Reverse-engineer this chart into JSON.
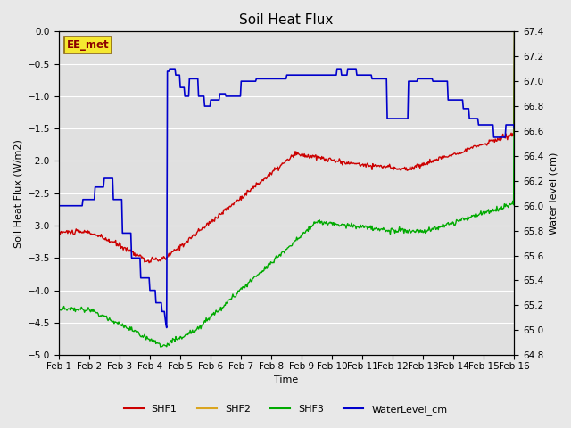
{
  "title": "Soil Heat Flux",
  "xlabel": "Time",
  "ylabel_left": "Soil Heat Flux (W/m2)",
  "ylabel_right": "Water level (cm)",
  "ylim_left": [
    -5.0,
    0.0
  ],
  "ylim_right": [
    64.8,
    67.4
  ],
  "yticks_left": [
    0.0,
    -0.5,
    -1.0,
    -1.5,
    -2.0,
    -2.5,
    -3.0,
    -3.5,
    -4.0,
    -4.5,
    -5.0
  ],
  "yticks_right": [
    64.8,
    65.0,
    65.2,
    65.4,
    65.6,
    65.8,
    66.0,
    66.2,
    66.4,
    66.6,
    66.8,
    67.0,
    67.2,
    67.4
  ],
  "xtick_labels": [
    "Feb 1",
    "Feb 2",
    "Feb 3",
    "Feb 4",
    "Feb 5",
    "Feb 6",
    "Feb 7",
    "Feb 8",
    "Feb 9",
    "Feb 10",
    "Feb 11",
    "Feb 12",
    "Feb 13",
    "Feb 14",
    "Feb 15",
    "Feb 16"
  ],
  "figure_bg": "#e8e8e8",
  "plot_bg": "#e0e0e0",
  "grid_color": "#ffffff",
  "ee_met_label": "EE_met",
  "ee_met_text_color": "#8b0000",
  "ee_met_box_facecolor": "#f5e830",
  "ee_met_box_edgecolor": "#8b6914",
  "shf1_color": "#cc0000",
  "shf2_color": "#daa520",
  "shf3_color": "#00aa00",
  "water_color": "#0000cc",
  "legend_labels": [
    "SHF1",
    "SHF2",
    "SHF3",
    "WaterLevel_cm"
  ],
  "title_fontsize": 11,
  "axis_label_fontsize": 8,
  "tick_fontsize": 7.5
}
